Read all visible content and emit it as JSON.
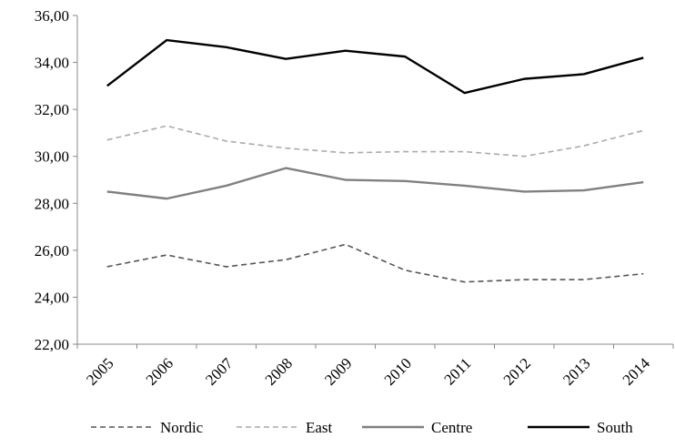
{
  "chart_data": {
    "type": "line",
    "categories": [
      "2005",
      "2006",
      "2007",
      "2008",
      "2009",
      "2010",
      "2011",
      "2012",
      "2013",
      "2014"
    ],
    "series": [
      {
        "name": "Nordic",
        "color": "#555555",
        "style": "dashed",
        "values": [
          25.3,
          25.8,
          25.3,
          25.6,
          26.25,
          25.15,
          24.65,
          24.75,
          24.75,
          25.0
        ]
      },
      {
        "name": "East",
        "color": "#aaaaaa",
        "style": "dashed",
        "values": [
          30.7,
          31.3,
          30.65,
          30.35,
          30.15,
          30.2,
          30.2,
          30.0,
          30.45,
          31.1
        ]
      },
      {
        "name": "Centre",
        "color": "#808080",
        "style": "solid",
        "values": [
          28.5,
          28.2,
          28.75,
          29.5,
          29.0,
          28.95,
          28.75,
          28.5,
          28.55,
          28.9
        ]
      },
      {
        "name": "South",
        "color": "#000000",
        "style": "solid",
        "values": [
          33.0,
          34.95,
          34.65,
          34.15,
          34.5,
          34.25,
          32.7,
          33.3,
          33.5,
          34.2
        ]
      }
    ],
    "ylim": [
      22,
      36
    ],
    "yticks": [
      {
        "value": 22,
        "label": "22,00"
      },
      {
        "value": 24,
        "label": "24,00"
      },
      {
        "value": 26,
        "label": "26,00"
      },
      {
        "value": 28,
        "label": "28,00"
      },
      {
        "value": 30,
        "label": "30,00"
      },
      {
        "value": 32,
        "label": "32,00"
      },
      {
        "value": 34,
        "label": "34,00"
      },
      {
        "value": 36,
        "label": "36,00"
      }
    ],
    "grid": false,
    "legend": "bottom"
  }
}
